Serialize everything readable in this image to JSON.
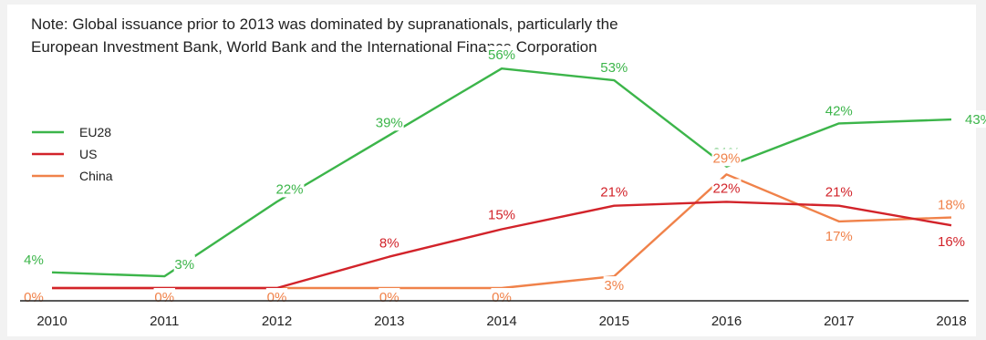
{
  "note": {
    "line1": "Note: Global issuance prior to 2013 was dominated by supranationals, particularly the",
    "line2": "European Investment Bank, World Bank and the International Finance Corporation"
  },
  "chart_data": {
    "type": "line",
    "categories": [
      "2010",
      "2011",
      "2012",
      "2013",
      "2014",
      "2015",
      "2016",
      "2017",
      "2018"
    ],
    "series": [
      {
        "name": "EU28",
        "color": "#3cb54a",
        "values": [
          4,
          3,
          22,
          39,
          56,
          53,
          31,
          42,
          43
        ]
      },
      {
        "name": "US",
        "color": "#d2232a",
        "values": [
          0,
          0,
          0,
          8,
          15,
          21,
          22,
          21,
          16
        ]
      },
      {
        "name": "China",
        "color": "#f0824a",
        "values": [
          0,
          0,
          0,
          0,
          0,
          3,
          29,
          17,
          18
        ]
      }
    ],
    "value_suffix": "%",
    "legend_position": "left",
    "grid": false,
    "ylim": [
      0,
      60
    ]
  }
}
